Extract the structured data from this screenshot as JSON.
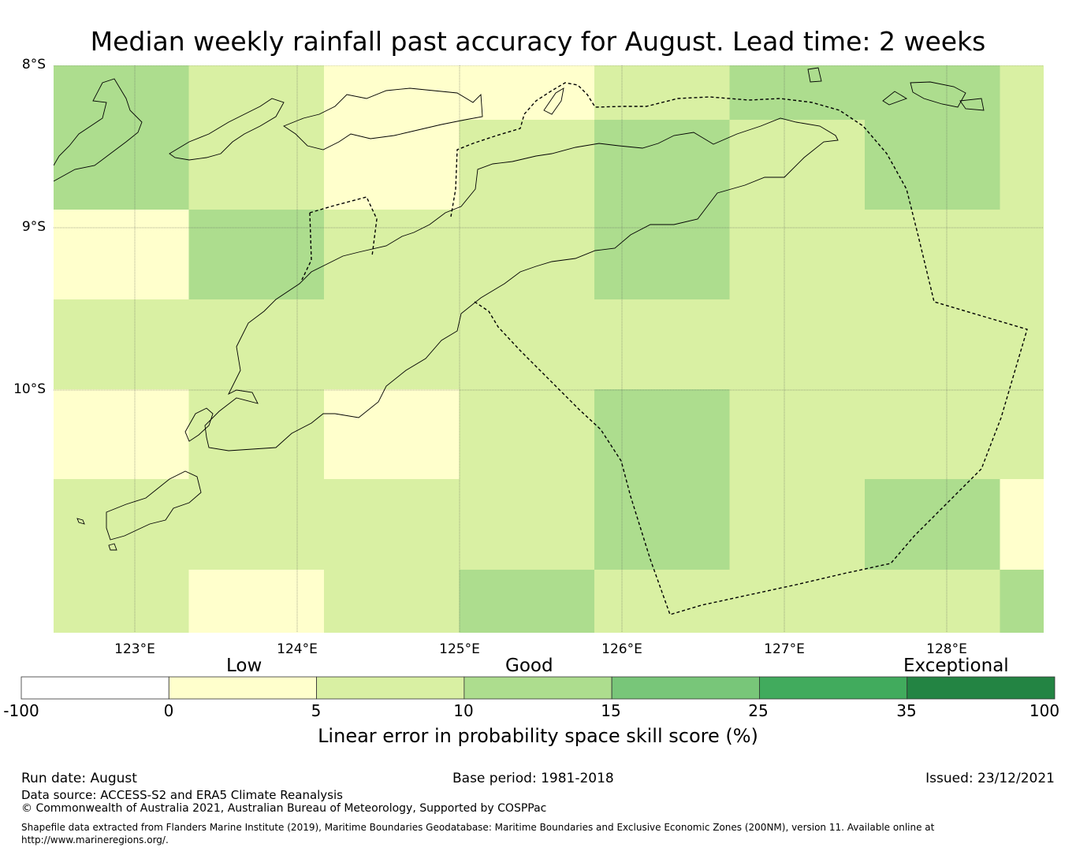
{
  "title": "Median weekly rainfall past accuracy for August. Lead time: 2 weeks",
  "map": {
    "lat_labels": [
      "8°S",
      "9°S",
      "10°S"
    ],
    "lon_labels": [
      "123°E",
      "124°E",
      "125°E",
      "126°E",
      "127°E",
      "128°E"
    ],
    "grid_lats": [
      -8,
      -9,
      -10
    ],
    "grid_lons": [
      123,
      124,
      125,
      126,
      127,
      128
    ],
    "extent": {
      "lon_min": 122.5,
      "lon_max": 128.6,
      "lat_min": -11.5,
      "lat_max": -8.0
    },
    "cell_size_deg": 0.833,
    "skill_categories_grid": [
      [
        3,
        2,
        1,
        1,
        2,
        3,
        3,
        2
      ],
      [
        3,
        2,
        1,
        2,
        3,
        2,
        3,
        2
      ],
      [
        1,
        3,
        2,
        2,
        3,
        2,
        2,
        2
      ],
      [
        2,
        2,
        2,
        2,
        2,
        2,
        2,
        2
      ],
      [
        1,
        2,
        1,
        2,
        3,
        2,
        2,
        2
      ],
      [
        2,
        2,
        2,
        2,
        3,
        2,
        3,
        1
      ],
      [
        2,
        1,
        2,
        3,
        2,
        2,
        2,
        3
      ]
    ]
  },
  "colorbar": {
    "category_labels": [
      "Low",
      "Good",
      "Exceptional"
    ],
    "ticks": [
      "-100",
      "0",
      "5",
      "10",
      "15",
      "25",
      "35",
      "100"
    ],
    "colors": [
      "#ffffff",
      "#ffffcc",
      "#d9f0a3",
      "#addd8e",
      "#78c679",
      "#41ab5d",
      "#238443"
    ],
    "title": "Linear error in probability space skill score (%)"
  },
  "footer": {
    "run_date": "Run date: August",
    "base_period": "Base period: 1981-2018",
    "issued": "Issued: 23/12/2021",
    "data_source": "Data source: ACCESS-S2 and ERA5 Climate Reanalysis",
    "copyright": "© Commonwealth of Australia 2021, Australian Bureau of Meteorology, Supported by COSPPac",
    "shapefile_note": "Shapefile data extracted from Flanders Marine Institute (2019), Maritime Boundaries Geodatabase: Maritime Boundaries and Exclusive Economic Zones (200NM), version 11. Available online at http://www.marineregions.org/."
  }
}
